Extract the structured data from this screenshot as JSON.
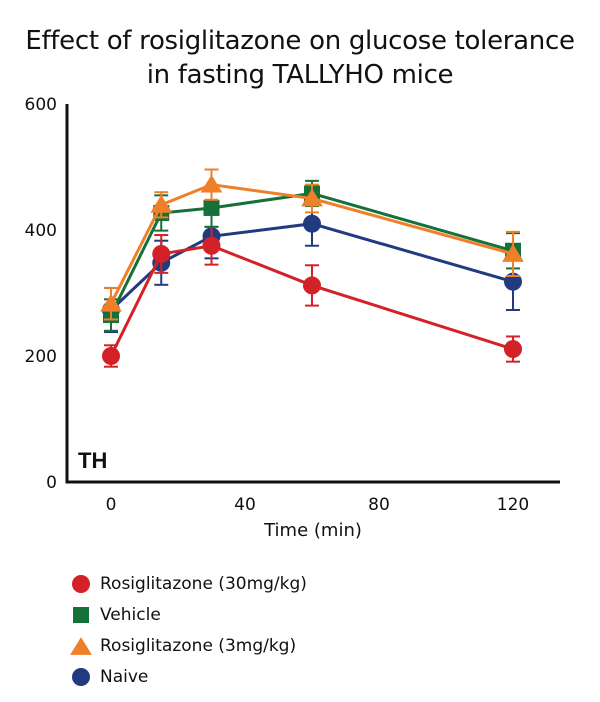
{
  "chart_data": {
    "type": "line",
    "title": "Effect of rosiglitazone on glucose tolerance in fasting TALLYHO mice",
    "title_lines": [
      "Effect of rosiglitazone on glucose tolerance",
      "in fasting TALLYHO mice"
    ],
    "xlabel": "Time (min)",
    "ylabel": "",
    "xlim": [
      -12,
      135
    ],
    "ylim": [
      0,
      600
    ],
    "x_ticks": [
      0,
      40,
      80,
      120
    ],
    "x_tick_labels": [
      "0",
      "40",
      "80",
      "120"
    ],
    "y_ticks": [
      0,
      200,
      400,
      600
    ],
    "y_tick_labels": [
      "0",
      "200",
      "400",
      "600"
    ],
    "grid": false,
    "panel_label": "TH",
    "legend_position": "bottom-left (below plot)",
    "x": [
      0,
      15,
      30,
      60,
      120
    ],
    "series": [
      {
        "name": "Rosiglitazone (30mg/kg)",
        "marker": "circle",
        "color": "#d42127",
        "values": [
          200,
          362,
          375,
          312,
          211
        ],
        "errors": [
          17,
          30,
          30,
          32,
          20
        ]
      },
      {
        "name": "Vehicle",
        "marker": "square",
        "color": "#16703a",
        "values": [
          265,
          427,
          435,
          458,
          367
        ],
        "errors": [
          25,
          28,
          30,
          20,
          28
        ]
      },
      {
        "name": "Rosiglitazone (3mg/kg)",
        "marker": "triangle",
        "color": "#f07f2a",
        "values": [
          283,
          440,
          472,
          450,
          362
        ],
        "errors": [
          25,
          20,
          24,
          22,
          35
        ]
      },
      {
        "name": "Naive",
        "marker": "circle",
        "color": "#213a80",
        "values": [
          273,
          348,
          390,
          410,
          318
        ],
        "errors": [
          35,
          35,
          35,
          35,
          45
        ]
      }
    ]
  }
}
